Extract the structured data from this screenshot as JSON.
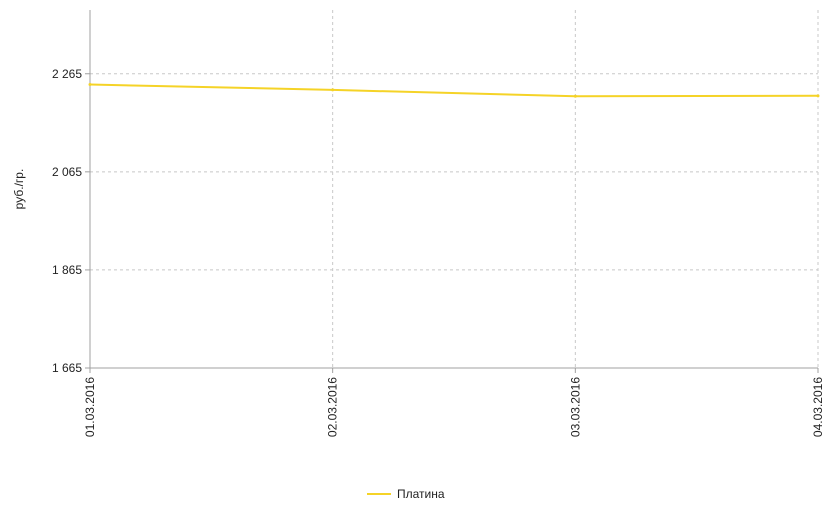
{
  "chart_data": {
    "type": "line",
    "categories": [
      "01.03.2016",
      "02.03.2016",
      "03.03.2016",
      "04.03.2016"
    ],
    "series": [
      {
        "name": "Платина",
        "color": "#f5d327",
        "values": [
          2243,
          2232,
          2219,
          2220
        ]
      }
    ],
    "title": "",
    "xlabel": "",
    "ylabel": "руб./гр.",
    "ylim": [
      1665,
      2395
    ],
    "yticks": [
      1665,
      1865,
      2065,
      2265
    ],
    "ytick_labels": [
      "1 665",
      "1 865",
      "2 065",
      "2 265"
    ],
    "grid": true,
    "legend_position": "bottom-center",
    "colors": {
      "grid": "#c8c8c8",
      "axis": "#a0a0a0"
    }
  }
}
